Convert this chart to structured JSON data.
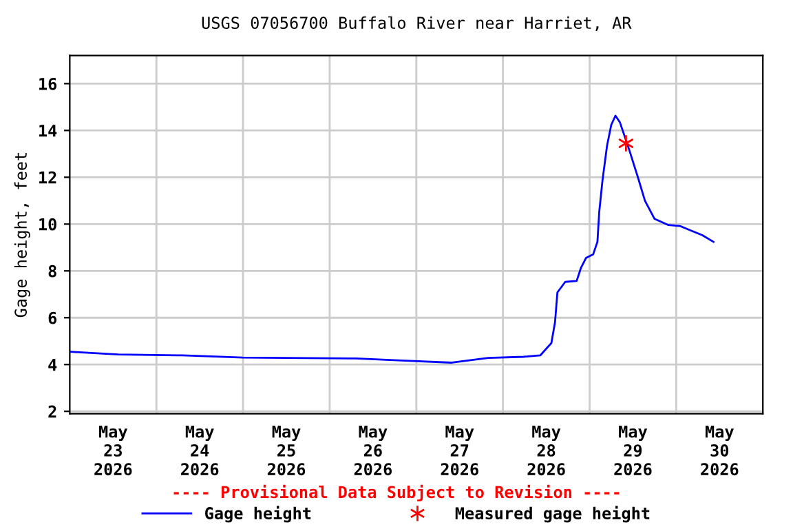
{
  "chart_data": {
    "type": "line",
    "title": "USGS 07056700 Buffalo River near Harriet, AR",
    "ylabel": "Gage height, feet",
    "annotations": [
      "---- Provisional Data Subject to Revision ----"
    ],
    "xlim": [
      "2026-05-23T00:00",
      "2026-05-31T00:00"
    ],
    "xticks": [
      {
        "value": "2026-05-23T12:00",
        "label": "May\n23\n2026"
      },
      {
        "value": "2026-05-24T12:00",
        "label": "May\n24\n2026"
      },
      {
        "value": "2026-05-25T12:00",
        "label": "May\n25\n2026"
      },
      {
        "value": "2026-05-26T12:00",
        "label": "May\n26\n2026"
      },
      {
        "value": "2026-05-27T12:00",
        "label": "May\n27\n2026"
      },
      {
        "value": "2026-05-28T12:00",
        "label": "May\n28\n2026"
      },
      {
        "value": "2026-05-29T12:00",
        "label": "May\n29\n2026"
      },
      {
        "value": "2026-05-30T12:00",
        "label": "May\n30\n2026"
      },
      {
        "value": "2026-05-24T00:00",
        "label": null
      },
      {
        "value": "2026-05-25T00:00",
        "label": null
      },
      {
        "value": "2026-05-26T00:00",
        "label": null
      },
      {
        "value": "2026-05-27T00:00",
        "label": null
      },
      {
        "value": "2026-05-28T00:00",
        "label": null
      },
      {
        "value": "2026-05-29T00:00",
        "label": null
      },
      {
        "value": "2026-05-30T00:00",
        "label": null
      }
    ],
    "ylim": [
      1.9,
      17.2
    ],
    "yticks": [
      2,
      4,
      6,
      8,
      10,
      12,
      14,
      16
    ],
    "grid": true,
    "legend": "bottom",
    "series": [
      {
        "name": "Gage height",
        "color": "#0000ff",
        "x": [
          "2026-05-23T00:00",
          "2026-05-23T13:30",
          "2026-05-24T07:10",
          "2026-05-25T00:00",
          "2026-05-26T07:10",
          "2026-05-26T19:55",
          "2026-05-27T09:50",
          "2026-05-27T19:55",
          "2026-05-28T05:45",
          "2026-05-28T10:20",
          "2026-05-28T13:25",
          "2026-05-28T14:25",
          "2026-05-28T15:05",
          "2026-05-28T17:15",
          "2026-05-28T20:25",
          "2026-05-28T21:35",
          "2026-05-28T23:00",
          "2026-05-29T01:00",
          "2026-05-29T02:10",
          "2026-05-29T02:40",
          "2026-05-29T03:35",
          "2026-05-29T04:50",
          "2026-05-29T06:00",
          "2026-05-29T07:10",
          "2026-05-29T08:25",
          "2026-05-29T11:00",
          "2026-05-29T13:25",
          "2026-05-29T15:20",
          "2026-05-29T18:00",
          "2026-05-29T21:50",
          "2026-05-30T01:00",
          "2026-05-30T04:05",
          "2026-05-30T07:10",
          "2026-05-30T10:20"
        ],
        "values": [
          4.55,
          4.43,
          4.39,
          4.3,
          4.26,
          4.17,
          4.08,
          4.28,
          4.33,
          4.39,
          4.92,
          5.8,
          7.08,
          7.53,
          7.57,
          8.12,
          8.55,
          8.71,
          9.24,
          10.51,
          11.88,
          13.35,
          14.24,
          14.63,
          14.34,
          13.16,
          11.98,
          11.0,
          10.22,
          9.96,
          9.92,
          9.72,
          9.53,
          9.24
        ]
      },
      {
        "name": "Measured gage height",
        "type": "scatter",
        "marker": "cross",
        "color": "#ff0000",
        "x": [
          "2026-05-29T10:05"
        ],
        "values": [
          13.45
        ]
      }
    ]
  }
}
